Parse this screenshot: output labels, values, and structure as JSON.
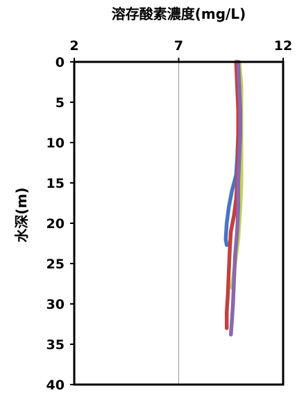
{
  "chart_data": {
    "type": "line",
    "title": "",
    "xlabel": "溶存酸素濃度(mg/L)",
    "ylabel": "水深(m)",
    "x_axis_position": "top",
    "xlim": [
      2,
      12
    ],
    "ylim": [
      0,
      40
    ],
    "y_inverted": true,
    "x_ticks": [
      2,
      7,
      12
    ],
    "y_ticks": [
      0,
      5,
      10,
      15,
      20,
      25,
      30,
      35,
      40
    ],
    "grid": {
      "vertical": true,
      "horizontal": false
    },
    "legend": "none",
    "series": [
      {
        "color": "#bcd45a",
        "points": [
          [
            9.9,
            0
          ],
          [
            10.0,
            3
          ],
          [
            10.0,
            6
          ],
          [
            10.0,
            9
          ],
          [
            10.0,
            12
          ],
          [
            10.0,
            15
          ],
          [
            9.95,
            18
          ],
          [
            9.9,
            20
          ],
          [
            9.85,
            22
          ],
          [
            9.75,
            24
          ],
          [
            9.65,
            26
          ],
          [
            9.55,
            28
          ]
        ]
      },
      {
        "color": "#4a74c4",
        "points": [
          [
            9.8,
            0
          ],
          [
            9.85,
            3
          ],
          [
            9.85,
            6
          ],
          [
            9.85,
            9
          ],
          [
            9.8,
            12
          ],
          [
            9.75,
            14
          ],
          [
            9.55,
            16
          ],
          [
            9.4,
            18
          ],
          [
            9.3,
            20
          ],
          [
            9.25,
            22
          ],
          [
            9.3,
            22.7
          ]
        ]
      },
      {
        "color": "#c0413e",
        "points": [
          [
            9.75,
            0
          ],
          [
            9.8,
            3
          ],
          [
            9.85,
            6
          ],
          [
            9.85,
            9
          ],
          [
            9.85,
            12
          ],
          [
            9.8,
            15
          ],
          [
            9.75,
            17
          ],
          [
            9.65,
            19
          ],
          [
            9.5,
            21
          ],
          [
            9.45,
            23
          ],
          [
            9.4,
            26
          ],
          [
            9.35,
            29
          ],
          [
            9.3,
            31
          ],
          [
            9.3,
            33
          ]
        ]
      },
      {
        "color": "#8b67ad",
        "points": [
          [
            9.85,
            0
          ],
          [
            9.9,
            3
          ],
          [
            9.95,
            6
          ],
          [
            9.95,
            9
          ],
          [
            9.9,
            12
          ],
          [
            9.85,
            15
          ],
          [
            9.85,
            18
          ],
          [
            9.8,
            21
          ],
          [
            9.7,
            24
          ],
          [
            9.65,
            27
          ],
          [
            9.6,
            30
          ],
          [
            9.55,
            32
          ],
          [
            9.5,
            33.8
          ]
        ]
      }
    ]
  }
}
